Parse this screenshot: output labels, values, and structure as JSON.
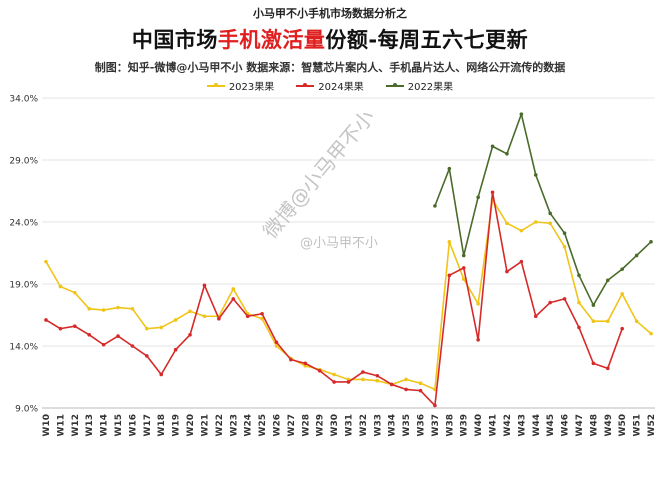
{
  "header": {
    "supertitle": "小马甲不小手机市场数据分析之",
    "title_prefix": "中国市场",
    "title_highlight": "手机激活量",
    "title_suffix": "份额-每周五六七更新",
    "credit": "制图：知乎-微博@小马甲不小   数据来源：智慧芯片案内人、手机晶片达人、网络公开流传的数据"
  },
  "watermark": {
    "rotated": "微博@小马甲不小",
    "small": "@小马甲不小"
  },
  "colors": {
    "y2023": "#f0c419",
    "y2024": "#d62a2a",
    "y2022": "#4a6b2a",
    "grid": "#e6e6e6",
    "highlight": "#e02020"
  },
  "chart_data": {
    "type": "line",
    "title": "中国市场手机激活量份额-每周五六七更新",
    "xlabel": "",
    "ylabel": "",
    "ylim": [
      9.0,
      34.0
    ],
    "yticks": [
      "9.0%",
      "14.0%",
      "19.0%",
      "24.0%",
      "29.0%",
      "34.0%"
    ],
    "ytick_values": [
      9,
      14,
      19,
      24,
      29,
      34
    ],
    "grid": true,
    "legend_position": "top",
    "x": [
      "W10",
      "W11",
      "W12",
      "W13",
      "W14",
      "W15",
      "W16",
      "W17",
      "W18",
      "W19",
      "W20",
      "W21",
      "W22",
      "W23",
      "W24",
      "W25",
      "W26",
      "W27",
      "W28",
      "W29",
      "W30",
      "W31",
      "W32",
      "W33",
      "W34",
      "W35",
      "W36",
      "W37",
      "W38",
      "W39",
      "W40",
      "W41",
      "W42",
      "W43",
      "W44",
      "W45",
      "W46",
      "W47",
      "W48",
      "W49",
      "W50",
      "W51",
      "W52"
    ],
    "series": [
      {
        "name": "2023果果",
        "color": "#f0c419",
        "values": [
          20.8,
          18.8,
          18.3,
          17.0,
          16.9,
          17.1,
          17.0,
          15.4,
          15.5,
          16.1,
          16.8,
          16.4,
          16.4,
          18.6,
          16.6,
          16.2,
          14.0,
          13.0,
          12.4,
          12.1,
          11.7,
          11.3,
          11.3,
          11.2,
          10.9,
          11.3,
          11.0,
          10.5,
          22.4,
          19.4,
          17.4,
          25.8,
          23.9,
          23.3,
          24.0,
          23.9,
          22.0,
          17.5,
          16.0,
          16.0,
          18.2,
          16.0,
          15.0
        ]
      },
      {
        "name": "2024果果",
        "color": "#d62a2a",
        "values": [
          16.1,
          15.4,
          15.6,
          14.9,
          14.1,
          14.8,
          14.0,
          13.2,
          11.7,
          13.7,
          14.9,
          18.9,
          16.2,
          17.8,
          16.4,
          16.6,
          14.3,
          12.9,
          12.6,
          12.0,
          11.1,
          11.1,
          11.9,
          11.6,
          10.9,
          10.5,
          10.4,
          9.2,
          19.7,
          20.3,
          14.5,
          26.4,
          20.0,
          20.8,
          16.4,
          17.5,
          17.8,
          15.5,
          12.6,
          12.2,
          15.4,
          null,
          null
        ]
      },
      {
        "name": "2022果果",
        "color": "#4a6b2a",
        "values": [
          null,
          null,
          null,
          null,
          null,
          null,
          null,
          null,
          null,
          null,
          null,
          null,
          null,
          null,
          null,
          null,
          null,
          null,
          null,
          null,
          null,
          null,
          null,
          null,
          null,
          null,
          null,
          25.3,
          28.3,
          21.3,
          26.0,
          30.1,
          29.5,
          32.7,
          27.8,
          24.7,
          23.1,
          19.7,
          17.3,
          19.3,
          20.2,
          21.3,
          22.4
        ]
      }
    ]
  }
}
